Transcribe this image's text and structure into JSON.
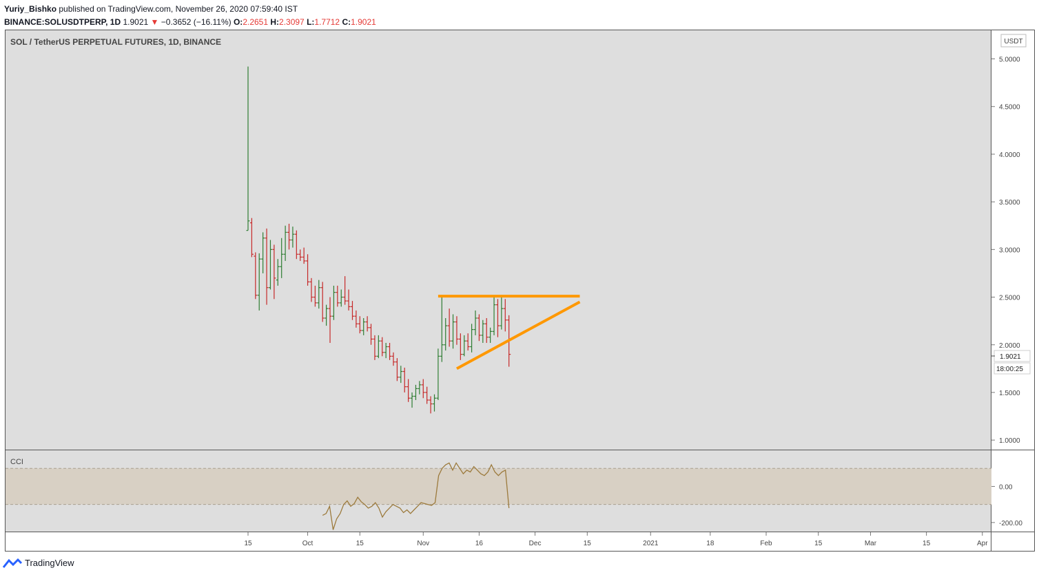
{
  "header": {
    "author": "Yuriy_Bishko",
    "published_text": "published on TradingView.com, November 26, 2020 07:59:40 IST",
    "symbol": "BINANCE:SOLUSDTPERP, 1D",
    "last": "1.9021",
    "change": "−0.3652 (−16.11%)",
    "o_label": "O:",
    "o_value": "2.2651",
    "h_label": "H:",
    "h_value": "2.3097",
    "l_label": "L:",
    "l_value": "1.7712",
    "c_label": "C:",
    "c_value": "1.9021"
  },
  "footer": {
    "brand": "TradingView"
  },
  "colors": {
    "up": "#2e7d32",
    "down": "#c62828",
    "trend": "#ff9800",
    "cci": "#9c7a3c",
    "band": "#d8d0c4"
  },
  "chart_data": {
    "type": "ohlc",
    "title": "SOL / TetherUS PERPETUAL FUTURES, 1D, BINANCE",
    "currency_label": "USDT",
    "y_ticks": [
      "5.0000",
      "4.5000",
      "4.0000",
      "3.5000",
      "3.0000",
      "2.5000",
      "2.0000",
      "1.5000",
      "1.0000"
    ],
    "y_tick_values": [
      5.0,
      4.5,
      4.0,
      3.5,
      3.0,
      2.5,
      2.0,
      1.5,
      1.0
    ],
    "ylim": [
      0.9,
      5.3
    ],
    "price_label": "1.9021",
    "countdown_label": "18:00:25",
    "x_ticks": [
      "15",
      "Oct",
      "15",
      "Nov",
      "16",
      "Dec",
      "15",
      "2021",
      "18",
      "Feb",
      "15",
      "Mar",
      "15",
      "Apr"
    ],
    "x_tick_days": [
      0,
      16,
      30,
      47,
      62,
      77,
      91,
      108,
      124,
      139,
      153,
      167,
      182,
      197
    ],
    "bars": [
      {
        "d": 0,
        "o": 3.2,
        "h": 4.92,
        "l": 3.2,
        "c": 3.3
      },
      {
        "d": 1,
        "o": 3.28,
        "h": 3.33,
        "l": 2.92,
        "c": 2.95
      },
      {
        "d": 2,
        "o": 2.93,
        "h": 2.97,
        "l": 2.48,
        "c": 2.52
      },
      {
        "d": 3,
        "o": 2.52,
        "h": 2.96,
        "l": 2.36,
        "c": 2.9
      },
      {
        "d": 4,
        "o": 2.9,
        "h": 3.18,
        "l": 2.75,
        "c": 3.12
      },
      {
        "d": 5,
        "o": 3.12,
        "h": 3.22,
        "l": 2.42,
        "c": 2.6
      },
      {
        "d": 6,
        "o": 2.6,
        "h": 3.1,
        "l": 2.58,
        "c": 3.0
      },
      {
        "d": 7,
        "o": 3.0,
        "h": 3.05,
        "l": 2.48,
        "c": 2.7
      },
      {
        "d": 8,
        "o": 2.68,
        "h": 2.9,
        "l": 2.62,
        "c": 2.82
      },
      {
        "d": 9,
        "o": 2.82,
        "h": 3.12,
        "l": 2.7,
        "c": 2.95
      },
      {
        "d": 10,
        "o": 2.95,
        "h": 3.25,
        "l": 2.88,
        "c": 3.18
      },
      {
        "d": 11,
        "o": 3.18,
        "h": 3.27,
        "l": 3.0,
        "c": 3.1
      },
      {
        "d": 12,
        "o": 3.1,
        "h": 3.24,
        "l": 3.02,
        "c": 3.16
      },
      {
        "d": 13,
        "o": 3.16,
        "h": 3.2,
        "l": 2.9,
        "c": 2.95
      },
      {
        "d": 14,
        "o": 2.95,
        "h": 3.0,
        "l": 2.88,
        "c": 2.92
      },
      {
        "d": 15,
        "o": 2.92,
        "h": 3.02,
        "l": 2.85,
        "c": 2.88
      },
      {
        "d": 16,
        "o": 2.88,
        "h": 2.95,
        "l": 2.62,
        "c": 2.66
      },
      {
        "d": 17,
        "o": 2.66,
        "h": 2.7,
        "l": 2.45,
        "c": 2.5
      },
      {
        "d": 18,
        "o": 2.5,
        "h": 2.62,
        "l": 2.4,
        "c": 2.44
      },
      {
        "d": 19,
        "o": 2.44,
        "h": 2.68,
        "l": 2.38,
        "c": 2.6
      },
      {
        "d": 20,
        "o": 2.6,
        "h": 2.66,
        "l": 2.24,
        "c": 2.28
      },
      {
        "d": 21,
        "o": 2.28,
        "h": 2.42,
        "l": 2.2,
        "c": 2.38
      },
      {
        "d": 22,
        "o": 2.38,
        "h": 2.5,
        "l": 2.02,
        "c": 2.3
      },
      {
        "d": 23,
        "o": 2.3,
        "h": 2.62,
        "l": 2.26,
        "c": 2.55
      },
      {
        "d": 24,
        "o": 2.55,
        "h": 2.62,
        "l": 2.4,
        "c": 2.44
      },
      {
        "d": 25,
        "o": 2.44,
        "h": 2.58,
        "l": 2.4,
        "c": 2.5
      },
      {
        "d": 26,
        "o": 2.5,
        "h": 2.72,
        "l": 2.42,
        "c": 2.46
      },
      {
        "d": 27,
        "o": 2.46,
        "h": 2.58,
        "l": 2.36,
        "c": 2.4
      },
      {
        "d": 28,
        "o": 2.4,
        "h": 2.46,
        "l": 2.26,
        "c": 2.3
      },
      {
        "d": 29,
        "o": 2.3,
        "h": 2.36,
        "l": 2.18,
        "c": 2.22
      },
      {
        "d": 30,
        "o": 2.22,
        "h": 2.3,
        "l": 2.12,
        "c": 2.15
      },
      {
        "d": 31,
        "o": 2.15,
        "h": 2.28,
        "l": 2.1,
        "c": 2.24
      },
      {
        "d": 32,
        "o": 2.24,
        "h": 2.3,
        "l": 2.14,
        "c": 2.18
      },
      {
        "d": 33,
        "o": 2.18,
        "h": 2.22,
        "l": 2.0,
        "c": 2.06
      },
      {
        "d": 34,
        "o": 2.06,
        "h": 2.1,
        "l": 1.84,
        "c": 1.88
      },
      {
        "d": 35,
        "o": 1.88,
        "h": 2.1,
        "l": 1.86,
        "c": 2.04
      },
      {
        "d": 36,
        "o": 2.04,
        "h": 2.08,
        "l": 1.88,
        "c": 1.92
      },
      {
        "d": 37,
        "o": 1.92,
        "h": 2.02,
        "l": 1.86,
        "c": 1.98
      },
      {
        "d": 38,
        "o": 1.98,
        "h": 2.02,
        "l": 1.84,
        "c": 1.88
      },
      {
        "d": 39,
        "o": 1.88,
        "h": 1.92,
        "l": 1.78,
        "c": 1.82
      },
      {
        "d": 40,
        "o": 1.82,
        "h": 1.86,
        "l": 1.62,
        "c": 1.66
      },
      {
        "d": 41,
        "o": 1.66,
        "h": 1.78,
        "l": 1.6,
        "c": 1.72
      },
      {
        "d": 42,
        "o": 1.72,
        "h": 1.76,
        "l": 1.5,
        "c": 1.56
      },
      {
        "d": 43,
        "o": 1.56,
        "h": 1.64,
        "l": 1.4,
        "c": 1.44
      },
      {
        "d": 44,
        "o": 1.44,
        "h": 1.5,
        "l": 1.34,
        "c": 1.46
      },
      {
        "d": 45,
        "o": 1.46,
        "h": 1.58,
        "l": 1.42,
        "c": 1.54
      },
      {
        "d": 46,
        "o": 1.54,
        "h": 1.62,
        "l": 1.48,
        "c": 1.58
      },
      {
        "d": 47,
        "o": 1.58,
        "h": 1.64,
        "l": 1.44,
        "c": 1.5
      },
      {
        "d": 48,
        "o": 1.5,
        "h": 1.56,
        "l": 1.38,
        "c": 1.42
      },
      {
        "d": 49,
        "o": 1.42,
        "h": 1.46,
        "l": 1.28,
        "c": 1.38
      },
      {
        "d": 50,
        "o": 1.38,
        "h": 1.48,
        "l": 1.3,
        "c": 1.44
      },
      {
        "d": 51,
        "o": 1.44,
        "h": 1.96,
        "l": 1.42,
        "c": 1.88
      },
      {
        "d": 52,
        "o": 1.88,
        "h": 2.5,
        "l": 1.82,
        "c": 2.0
      },
      {
        "d": 53,
        "o": 2.0,
        "h": 2.28,
        "l": 1.94,
        "c": 2.2
      },
      {
        "d": 54,
        "o": 2.2,
        "h": 2.38,
        "l": 1.98,
        "c": 2.04
      },
      {
        "d": 55,
        "o": 2.04,
        "h": 2.32,
        "l": 1.96,
        "c": 2.24
      },
      {
        "d": 56,
        "o": 2.24,
        "h": 2.3,
        "l": 2.0,
        "c": 2.06
      },
      {
        "d": 57,
        "o": 2.06,
        "h": 2.12,
        "l": 1.84,
        "c": 1.9
      },
      {
        "d": 58,
        "o": 1.9,
        "h": 2.1,
        "l": 1.88,
        "c": 2.04
      },
      {
        "d": 59,
        "o": 2.04,
        "h": 2.12,
        "l": 1.94,
        "c": 1.98
      },
      {
        "d": 60,
        "o": 1.98,
        "h": 2.22,
        "l": 1.92,
        "c": 2.16
      },
      {
        "d": 61,
        "o": 2.16,
        "h": 2.36,
        "l": 2.1,
        "c": 2.28
      },
      {
        "d": 62,
        "o": 2.28,
        "h": 2.32,
        "l": 2.04,
        "c": 2.1
      },
      {
        "d": 63,
        "o": 2.1,
        "h": 2.26,
        "l": 2.02,
        "c": 2.22
      },
      {
        "d": 64,
        "o": 2.22,
        "h": 2.28,
        "l": 2.02,
        "c": 2.08
      },
      {
        "d": 65,
        "o": 2.08,
        "h": 2.18,
        "l": 2.02,
        "c": 2.14
      },
      {
        "d": 66,
        "o": 2.14,
        "h": 2.5,
        "l": 2.1,
        "c": 2.42
      },
      {
        "d": 67,
        "o": 2.42,
        "h": 2.48,
        "l": 2.08,
        "c": 2.2
      },
      {
        "d": 68,
        "o": 2.2,
        "h": 2.5,
        "l": 2.16,
        "c": 2.38
      },
      {
        "d": 69,
        "o": 2.38,
        "h": 2.48,
        "l": 2.14,
        "c": 2.26
      },
      {
        "d": 70,
        "o": 2.26,
        "h": 2.31,
        "l": 1.77,
        "c": 1.9
      }
    ],
    "trendlines": [
      {
        "name": "resistance",
        "d1": 51,
        "p1": 2.51,
        "d2": 89,
        "p2": 2.51
      },
      {
        "name": "support",
        "d1": 56,
        "p1": 1.75,
        "d2": 89,
        "p2": 2.45
      }
    ],
    "cci": {
      "label": "CCI",
      "y_ticks": [
        "0.00",
        "-200.00"
      ],
      "y_tick_values": [
        0,
        -200
      ],
      "band": [
        100,
        -100
      ],
      "ylim": [
        -250,
        200
      ],
      "start_day": 20,
      "values": [
        -160,
        -150,
        -110,
        -240,
        -180,
        -150,
        -100,
        -80,
        -110,
        -95,
        -60,
        -85,
        -100,
        -120,
        -110,
        -90,
        -120,
        -170,
        -140,
        -120,
        -100,
        -110,
        -120,
        -145,
        -130,
        -150,
        -130,
        -110,
        -90,
        -95,
        -100,
        -105,
        -90,
        60,
        100,
        120,
        130,
        90,
        130,
        100,
        70,
        90,
        80,
        110,
        90,
        70,
        60,
        80,
        120,
        80,
        60,
        80,
        90,
        -120
      ]
    },
    "drawn_price_days": [
      0,
      70
    ]
  }
}
